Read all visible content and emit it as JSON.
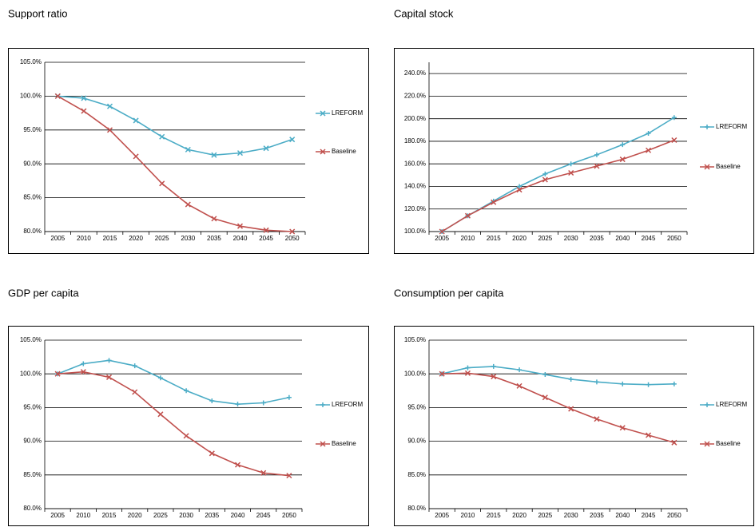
{
  "chart_data": [
    {
      "type": "line",
      "title": "Support ratio",
      "categories": [
        "2005",
        "2010",
        "2015",
        "2020",
        "2025",
        "2030",
        "2035",
        "2040",
        "2045",
        "2050"
      ],
      "ylim": [
        80,
        105
      ],
      "yticks": [
        {
          "value": 80,
          "label": "80.0%"
        },
        {
          "value": 85,
          "label": "85.0%"
        },
        {
          "value": 90,
          "label": "90.0%"
        },
        {
          "value": 95,
          "label": "95.0%"
        },
        {
          "value": 100,
          "label": "100.0%"
        },
        {
          "value": 105,
          "label": "105.0%"
        }
      ],
      "grid": true,
      "legend": "right",
      "series": [
        {
          "name": "LREFORM",
          "color": "#4bacc6",
          "marker": "x",
          "values": [
            100,
            99.7,
            98.5,
            96.4,
            94.0,
            92.1,
            91.3,
            91.6,
            92.3,
            93.6
          ]
        },
        {
          "name": "Baseline",
          "color": "#c0504d",
          "marker": "x",
          "values": [
            100,
            97.8,
            95.0,
            91.1,
            87.1,
            84.0,
            81.9,
            80.8,
            80.2,
            80.0
          ]
        }
      ]
    },
    {
      "type": "line",
      "title": "Capital stock",
      "categories": [
        "2005",
        "2010",
        "2015",
        "2020",
        "2025",
        "2030",
        "2035",
        "2040",
        "2045",
        "2050"
      ],
      "ylim": [
        100,
        250
      ],
      "yticks": [
        {
          "value": 100,
          "label": "100.0%"
        },
        {
          "value": 120,
          "label": "120.0%"
        },
        {
          "value": 140,
          "label": "140.0%"
        },
        {
          "value": 160,
          "label": "160.0%"
        },
        {
          "value": 180,
          "label": "180.0%"
        },
        {
          "value": 200,
          "label": "200.0%"
        },
        {
          "value": 220,
          "label": "220.0%"
        },
        {
          "value": 240,
          "label": "240.0%"
        }
      ],
      "grid": true,
      "legend": "right",
      "series": [
        {
          "name": "LREFORM",
          "color": "#4bacc6",
          "marker": "+",
          "values": [
            100,
            114,
            127,
            140,
            151,
            160,
            168,
            177,
            187,
            201
          ]
        },
        {
          "name": "Baseline",
          "color": "#c0504d",
          "marker": "x",
          "values": [
            100,
            114,
            126,
            137,
            146,
            152,
            158,
            164,
            172,
            181
          ]
        }
      ]
    },
    {
      "type": "line",
      "title": "GDP per capita",
      "categories": [
        "2005",
        "2010",
        "2015",
        "2020",
        "2025",
        "2030",
        "2035",
        "2040",
        "2045",
        "2050"
      ],
      "ylim": [
        80,
        105
      ],
      "yticks": [
        {
          "value": 80,
          "label": "80.0%"
        },
        {
          "value": 85,
          "label": "85.0%"
        },
        {
          "value": 90,
          "label": "90.0%"
        },
        {
          "value": 95,
          "label": "95.0%"
        },
        {
          "value": 100,
          "label": "100.0%"
        },
        {
          "value": 105,
          "label": "105.0%"
        }
      ],
      "grid": true,
      "legend": "right",
      "series": [
        {
          "name": "LREFORM",
          "color": "#4bacc6",
          "marker": "+",
          "values": [
            100,
            101.5,
            102.0,
            101.2,
            99.4,
            97.5,
            96.0,
            95.5,
            95.7,
            96.5
          ]
        },
        {
          "name": "Baseline",
          "color": "#c0504d",
          "marker": "x",
          "values": [
            100,
            100.3,
            99.5,
            97.3,
            94.0,
            90.8,
            88.2,
            86.5,
            85.3,
            84.9
          ]
        }
      ]
    },
    {
      "type": "line",
      "title": "Consumption per capita",
      "categories": [
        "2005",
        "2010",
        "2015",
        "2020",
        "2025",
        "2030",
        "2035",
        "2040",
        "2045",
        "2050"
      ],
      "ylim": [
        80,
        105
      ],
      "yticks": [
        {
          "value": 80,
          "label": "80.0%"
        },
        {
          "value": 85,
          "label": "85.0%"
        },
        {
          "value": 90,
          "label": "90.0%"
        },
        {
          "value": 95,
          "label": "95.0%"
        },
        {
          "value": 100,
          "label": "100.0%"
        },
        {
          "value": 105,
          "label": "105.0%"
        }
      ],
      "grid": true,
      "legend": "right",
      "series": [
        {
          "name": "LREFORM",
          "color": "#4bacc6",
          "marker": "+",
          "values": [
            100,
            100.9,
            101.1,
            100.6,
            99.9,
            99.2,
            98.8,
            98.5,
            98.4,
            98.5
          ]
        },
        {
          "name": "Baseline",
          "color": "#c0504d",
          "marker": "x",
          "values": [
            100,
            100.1,
            99.6,
            98.2,
            96.5,
            94.8,
            93.3,
            92.0,
            90.9,
            89.8
          ]
        }
      ]
    }
  ]
}
